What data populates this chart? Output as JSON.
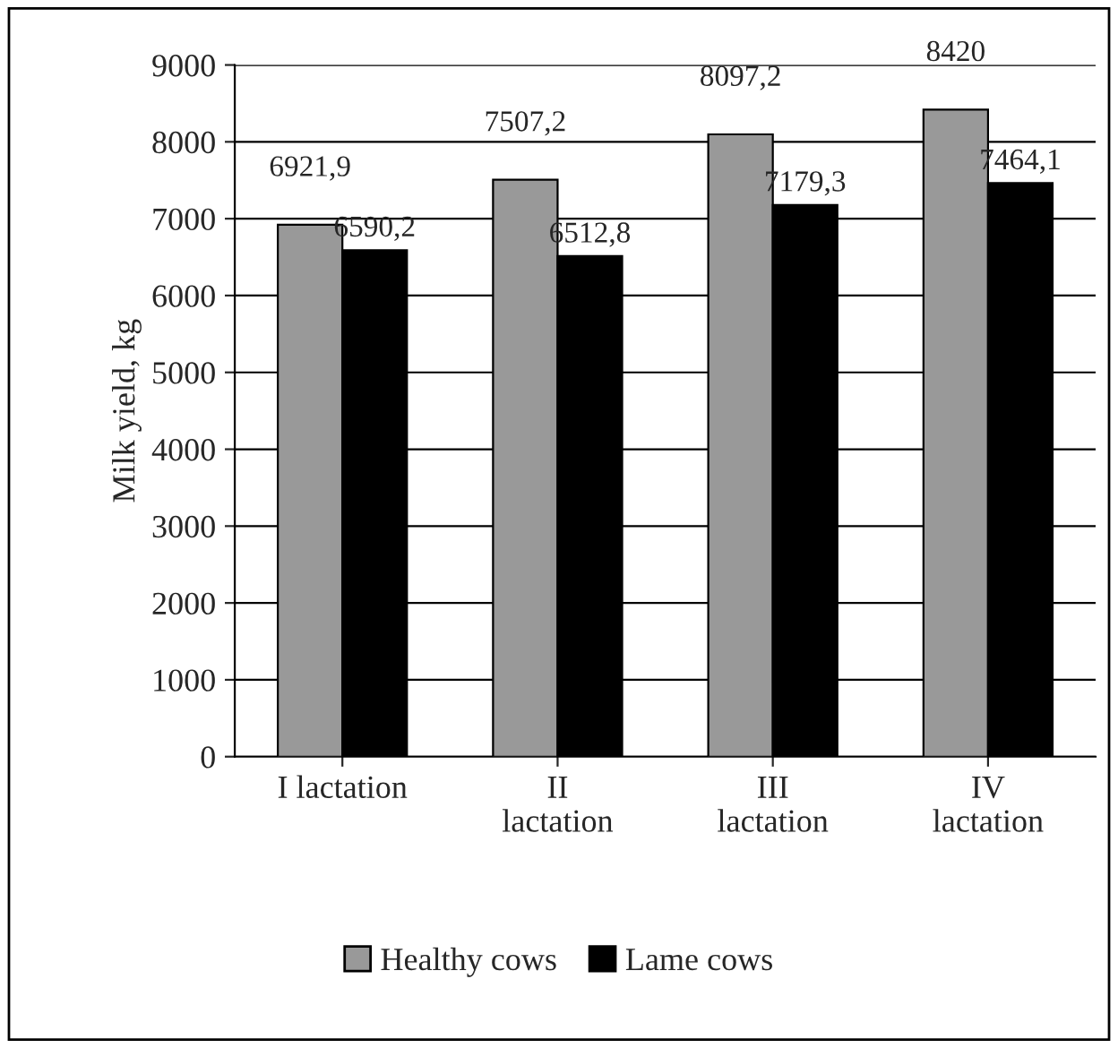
{
  "chart_data": {
    "type": "bar",
    "ylabel": "Milk yield, kg",
    "categories": [
      "I lactation",
      "II\nlactation",
      "III\nlactation",
      "IV\nlactation"
    ],
    "series": [
      {
        "name": "Healthy cows",
        "color": "#999999",
        "values": [
          6921.9,
          7507.2,
          8097.2,
          8420
        ],
        "value_labels": [
          "6921,9",
          "7507,2",
          "8097,2",
          "8420"
        ]
      },
      {
        "name": "Lame cows",
        "color": "#000000",
        "values": [
          6590.2,
          6512.8,
          7179.3,
          7464.1
        ],
        "value_labels": [
          "6590,2",
          "6512,8",
          "7179,3",
          "7464,1"
        ]
      }
    ],
    "ylim": [
      0,
      9000
    ],
    "yticks": [
      0,
      1000,
      2000,
      3000,
      4000,
      5000,
      6000,
      7000,
      8000,
      9000
    ],
    "grid": "y",
    "legend": "bottom"
  }
}
